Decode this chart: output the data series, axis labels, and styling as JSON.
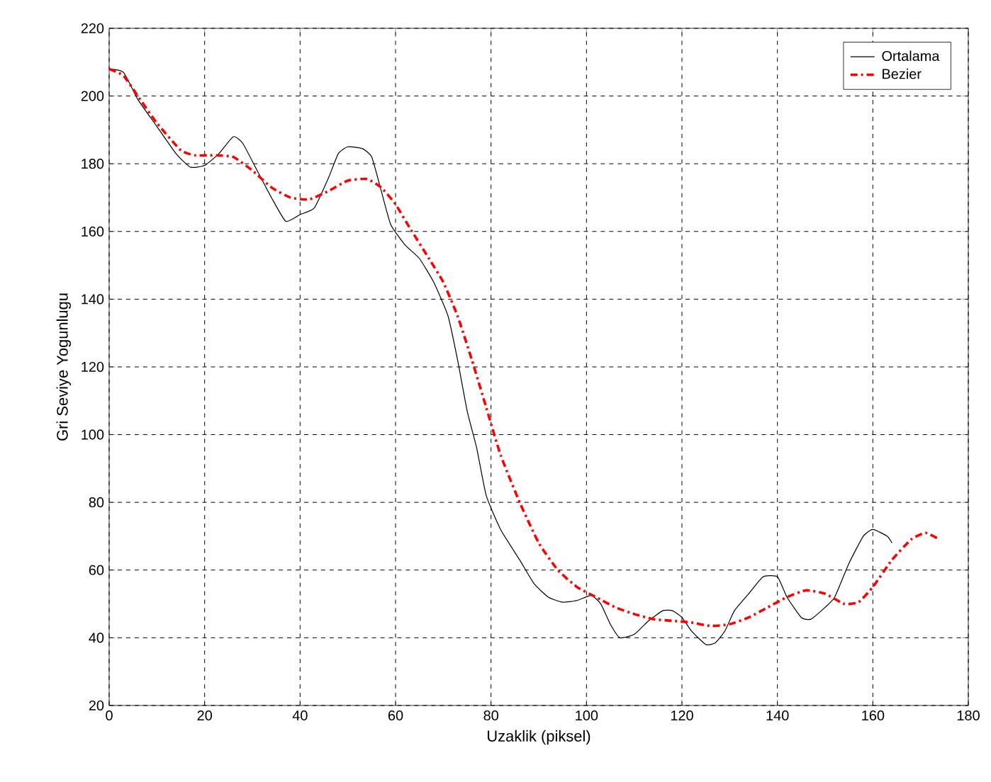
{
  "chart_data": {
    "type": "line",
    "xlabel": "Uzaklik (piksel)",
    "ylabel": "Gri Seviye Yogunlugu",
    "xlim": [
      0,
      180
    ],
    "ylim": [
      20,
      220
    ],
    "xticks": [
      0,
      20,
      40,
      60,
      80,
      100,
      120,
      140,
      160,
      180
    ],
    "yticks": [
      20,
      40,
      60,
      80,
      100,
      120,
      140,
      160,
      180,
      200,
      220
    ],
    "grid": true,
    "legend": "top right",
    "series": [
      {
        "name": "Ortalama",
        "color": "#000000",
        "line_style": "solid",
        "x": [
          0,
          3,
          6,
          10,
          14,
          17,
          20,
          23,
          26,
          28,
          31,
          34,
          37,
          40,
          43,
          46,
          48,
          50,
          53,
          55,
          57,
          59,
          62,
          65,
          68,
          71,
          73,
          75,
          77,
          79,
          82,
          86,
          89,
          92,
          95,
          98,
          101,
          103,
          105,
          107,
          110,
          113,
          116,
          118,
          120,
          122,
          125,
          127,
          129,
          131,
          134,
          137,
          140,
          142,
          145,
          147,
          150,
          152,
          155,
          158,
          160,
          163,
          164
        ],
        "values": [
          208,
          207,
          199,
          191,
          183,
          179,
          179.5,
          183,
          188,
          186,
          178,
          170,
          163,
          165,
          167,
          176,
          183,
          185,
          184.5,
          182,
          172,
          162,
          156,
          152,
          145,
          135,
          122,
          107,
          96,
          82,
          72,
          63,
          56,
          52,
          50.5,
          51,
          52.5,
          50,
          44,
          40,
          41,
          45,
          48,
          48,
          46,
          42,
          38,
          38.5,
          42,
          48,
          53,
          58,
          58,
          52,
          46,
          45.5,
          49,
          52,
          62,
          70,
          72,
          70,
          68
        ]
      },
      {
        "name": "Bezier",
        "color": "#ff0000",
        "line_style": "dashdot",
        "x": [
          0,
          3,
          6,
          10,
          15,
          18,
          22,
          26,
          30,
          34,
          38,
          42,
          46,
          50,
          54,
          57,
          60,
          63,
          67,
          70,
          73,
          76,
          79,
          82,
          86,
          90,
          94,
          98,
          102,
          106,
          110,
          114,
          118,
          122,
          126,
          130,
          134,
          138,
          142,
          146,
          150,
          154,
          157,
          160,
          164,
          168,
          171,
          174
        ],
        "values": [
          208,
          206,
          200,
          192,
          184,
          182.5,
          182.5,
          182,
          178,
          173,
          170,
          169.5,
          172,
          175,
          175.5,
          173,
          168,
          161,
          152,
          145,
          135,
          122,
          108,
          94,
          80,
          68,
          60,
          55,
          52,
          49,
          47,
          45.5,
          45,
          44.5,
          43.5,
          44,
          46,
          49,
          52,
          54,
          53,
          50,
          50.5,
          55,
          63,
          69,
          71,
          69
        ]
      }
    ]
  }
}
